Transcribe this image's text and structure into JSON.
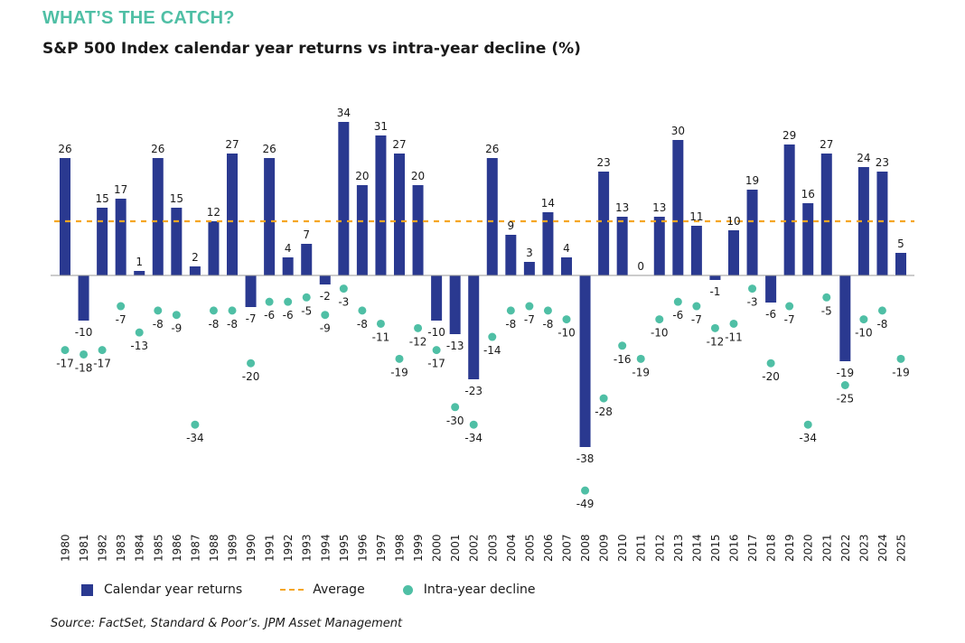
{
  "header": {
    "kicker": "WHAT’S THE CATCH?",
    "subtitle": "S&P 500 Index calendar year returns vs intra-year decline (%)"
  },
  "colors": {
    "bar": "#2a3990",
    "average": "#f5a623",
    "decline": "#4fbfa5",
    "kicker": "#4fbfa5",
    "axis": "#999999"
  },
  "chart_data": {
    "type": "bar",
    "title": "S&P 500 Index calendar year returns vs intra-year decline (%)",
    "xlabel": "",
    "ylabel": "%",
    "ylim": [
      -50,
      35
    ],
    "grid": false,
    "legend_position": "bottom-left",
    "categories": [
      "1980",
      "1981",
      "1982",
      "1983",
      "1984",
      "1985",
      "1986",
      "1987",
      "1988",
      "1989",
      "1990",
      "1991",
      "1992",
      "1993",
      "1994",
      "1995",
      "1996",
      "1997",
      "1998",
      "1999",
      "2000",
      "2001",
      "2002",
      "2003",
      "2004",
      "2005",
      "2006",
      "2007",
      "2008",
      "2009",
      "2010",
      "2011",
      "2012",
      "2013",
      "2014",
      "2015",
      "2016",
      "2017",
      "2018",
      "2019",
      "2020",
      "2021",
      "2022",
      "2023",
      "2024",
      "2025"
    ],
    "series": [
      {
        "name": "Calendar year returns",
        "type": "bar",
        "values": [
          26,
          -10,
          15,
          17,
          1,
          26,
          15,
          2,
          12,
          27,
          -7,
          26,
          4,
          7,
          -2,
          34,
          20,
          31,
          27,
          20,
          -10,
          -13,
          -23,
          26,
          9,
          3,
          14,
          4,
          -38,
          23,
          13,
          0,
          13,
          30,
          11,
          -1,
          10,
          19,
          -6,
          29,
          16,
          27,
          -19,
          24,
          23,
          5
        ]
      },
      {
        "name": "Intra-year decline",
        "type": "scatter",
        "values": [
          -17,
          -18,
          -17,
          -7,
          -13,
          -8,
          -9,
          -34,
          -8,
          -8,
          -20,
          -6,
          -6,
          -5,
          -9,
          -3,
          -8,
          -11,
          -19,
          -12,
          -17,
          -30,
          -34,
          -14,
          -8,
          -7,
          -8,
          -10,
          -49,
          -28,
          -16,
          -19,
          -10,
          -6,
          -7,
          -12,
          -11,
          -3,
          -20,
          -7,
          -34,
          -5,
          -25,
          -10,
          -8,
          -19
        ]
      },
      {
        "name": "Average",
        "type": "line",
        "value": 12
      }
    ]
  },
  "legend": {
    "bar_label": "Calendar year returns",
    "avg_label": "Average",
    "dot_label": "Intra-year decline"
  },
  "source": "Source: FactSet, Standard & Poor’s. JPM Asset Management"
}
